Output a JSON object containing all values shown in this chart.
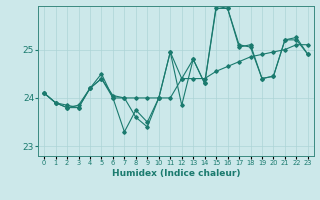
{
  "xlabel": "Humidex (Indice chaleur)",
  "ylabel": "",
  "bg_color": "#cce8ea",
  "line_color": "#1a7a6e",
  "grid_color": "#add4d6",
  "xlim": [
    -0.5,
    23.5
  ],
  "ylim": [
    22.8,
    25.9
  ],
  "yticks": [
    23,
    24,
    25
  ],
  "xtick_labels": [
    "0",
    "1",
    "2",
    "3",
    "4",
    "5",
    "6",
    "7",
    "8",
    "9",
    "10",
    "11",
    "12",
    "13",
    "14",
    "15",
    "16",
    "17",
    "18",
    "19",
    "20",
    "21",
    "22",
    "23"
  ],
  "series": [
    [
      24.1,
      23.9,
      23.8,
      23.8,
      24.2,
      24.4,
      24.0,
      24.0,
      23.6,
      23.4,
      24.0,
      24.95,
      24.4,
      24.8,
      24.3,
      25.85,
      25.85,
      25.1,
      25.05,
      24.4,
      24.45,
      25.2,
      25.2,
      24.9
    ],
    [
      24.1,
      23.9,
      23.8,
      23.85,
      24.2,
      24.4,
      24.05,
      24.0,
      24.0,
      24.0,
      24.0,
      24.0,
      24.4,
      24.4,
      24.4,
      24.55,
      24.65,
      24.75,
      24.85,
      24.9,
      24.95,
      25.0,
      25.1,
      25.1
    ],
    [
      24.1,
      23.9,
      23.85,
      23.8,
      24.2,
      24.5,
      24.0,
      23.3,
      23.75,
      23.5,
      24.0,
      24.95,
      23.85,
      24.8,
      24.3,
      25.9,
      25.85,
      25.05,
      25.1,
      24.4,
      24.45,
      25.2,
      25.25,
      24.9
    ]
  ]
}
